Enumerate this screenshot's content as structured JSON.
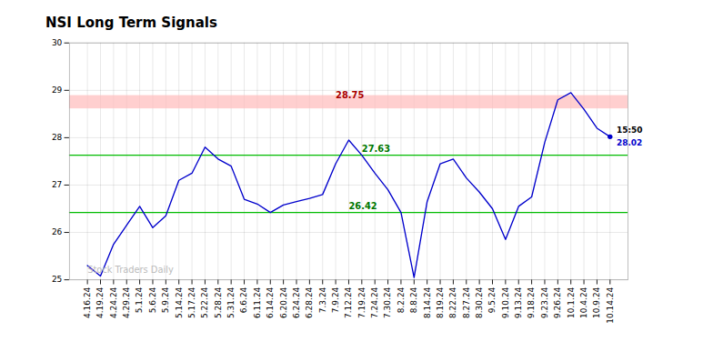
{
  "chart_data": {
    "type": "line",
    "title": "NSI Long Term Signals",
    "categories": [
      "4.16.24",
      "4.19.24",
      "4.24.24",
      "4.29.24",
      "5.1.24",
      "5.6.24",
      "5.9.24",
      "5.14.24",
      "5.17.24",
      "5.22.24",
      "5.28.24",
      "5.31.24",
      "6.6.24",
      "6.11.24",
      "6.14.24",
      "6.20.24",
      "6.24.24",
      "6.28.24",
      "7.3.24",
      "7.9.24",
      "7.12.24",
      "7.19.24",
      "7.24.24",
      "7.30.24",
      "8.2.24",
      "8.8.24",
      "8.14.24",
      "8.19.24",
      "8.22.24",
      "8.27.24",
      "8.30.24",
      "9.5.24",
      "9.10.24",
      "9.13.24",
      "9.18.24",
      "9.23.24",
      "9.26.24",
      "10.1.24",
      "10.4.24",
      "10.9.24",
      "10.14.24"
    ],
    "values": [
      25.3,
      25.08,
      25.75,
      26.15,
      26.55,
      26.1,
      26.35,
      27.1,
      27.25,
      27.8,
      27.55,
      27.4,
      26.7,
      26.6,
      26.42,
      26.58,
      26.65,
      26.72,
      26.8,
      27.45,
      27.95,
      27.63,
      27.25,
      26.9,
      26.42,
      25.05,
      26.65,
      27.45,
      27.55,
      27.15,
      26.85,
      26.5,
      25.85,
      26.55,
      26.75,
      27.9,
      28.8,
      28.95,
      28.6,
      28.2,
      28.02
    ],
    "color": "#0000cc",
    "ylim": [
      25,
      30
    ],
    "yticks": [
      25,
      26,
      27,
      28,
      29,
      30
    ],
    "grid": true,
    "bands": [
      {
        "y0": 28.61,
        "y1": 28.89,
        "color": "#ffbbbb"
      }
    ],
    "hlines": [
      {
        "y": 27.63,
        "color": "#00bb00"
      },
      {
        "y": 26.42,
        "color": "#00bb00"
      }
    ],
    "annotations": [
      {
        "text": "28.75",
        "x": "7.9.24",
        "y": 28.75,
        "color": "#aa0000"
      },
      {
        "text": "27.63",
        "x": "7.19.24",
        "y": 27.63,
        "color": "#007700"
      },
      {
        "text": "26.42",
        "x": "7.12.24",
        "y": 26.42,
        "color": "#007700"
      },
      {
        "text": "15:50",
        "x": "10.14.24",
        "y": 28.02,
        "color": "#000000"
      },
      {
        "text": "28.02",
        "x": "10.14.24",
        "y": 28.02,
        "color": "#0000cc"
      },
      {
        "text": "Stock Traders Daily",
        "x": "4.16.24",
        "y": 25.06,
        "color": "#bbbbbb"
      }
    ]
  }
}
